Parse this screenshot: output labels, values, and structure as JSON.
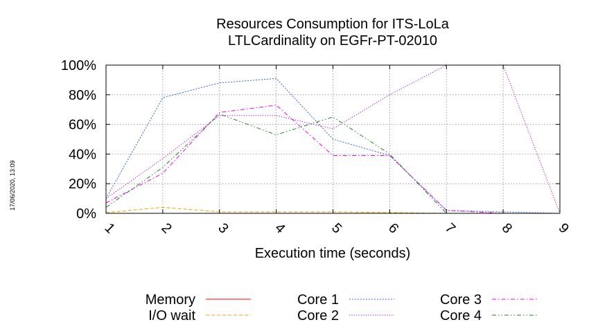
{
  "side_stamp": "17/06/2020, 13:09",
  "chart_data": {
    "type": "line",
    "title": [
      "Resources Consumption for ITS-LoLa",
      "LTLCardinality on EGFr-PT-02010"
    ],
    "xlabel": "Execution time (seconds)",
    "ylabel": "",
    "x": [
      1,
      2,
      3,
      4,
      5,
      6,
      7,
      8,
      9
    ],
    "xlim": [
      1,
      9
    ],
    "ylim": [
      0,
      100
    ],
    "yticks": [
      "0%",
      "20%",
      "40%",
      "60%",
      "80%",
      "100%"
    ],
    "grid": true,
    "legend_position": "bottom",
    "series": [
      {
        "name": "Memory",
        "color": "#ff0000",
        "dash": "solid",
        "values": [
          0,
          0,
          0,
          0,
          0,
          0,
          0,
          0,
          0
        ]
      },
      {
        "name": "I/O wait",
        "color": "#f0a000",
        "dash": "dashed",
        "values": [
          0.5,
          4,
          1,
          1,
          1,
          0.5,
          0,
          0,
          0
        ]
      },
      {
        "name": "Core 1",
        "color": "#3060e0",
        "dash": "dotted-fine",
        "values": [
          10,
          78,
          88,
          91,
          50,
          39,
          2,
          1,
          0
        ]
      },
      {
        "name": "Core 2",
        "color": "#a000d0",
        "dash": "dotted",
        "values": [
          10,
          37,
          66,
          66,
          57,
          80,
          100,
          100,
          0
        ]
      },
      {
        "name": "Core 3",
        "color": "#f000f0",
        "dash": "dashdot",
        "values": [
          7,
          27,
          68,
          73,
          39,
          39,
          2,
          0,
          0
        ]
      },
      {
        "name": "Core 4",
        "color": "#208020",
        "dash": "dashdotdot",
        "values": [
          4,
          31,
          67,
          53,
          65,
          40,
          0,
          0,
          0
        ]
      }
    ]
  }
}
